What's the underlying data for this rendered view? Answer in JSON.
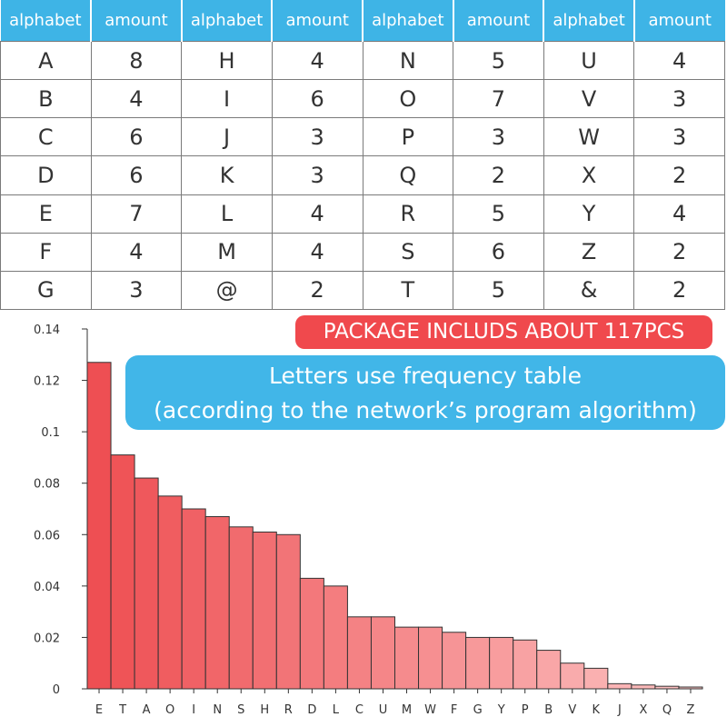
{
  "table": {
    "headers": [
      "alphabet",
      "amount",
      "alphabet",
      "amount",
      "alphabet",
      "amount",
      "alphabet",
      "amount"
    ],
    "rows": [
      [
        "A",
        "8",
        "H",
        "4",
        "N",
        "5",
        "U",
        "4"
      ],
      [
        "B",
        "4",
        "I",
        "6",
        "O",
        "7",
        "V",
        "3"
      ],
      [
        "C",
        "6",
        "J",
        "3",
        "P",
        "3",
        "W",
        "3"
      ],
      [
        "D",
        "6",
        "K",
        "3",
        "Q",
        "2",
        "X",
        "2"
      ],
      [
        "E",
        "7",
        "L",
        "4",
        "R",
        "5",
        "Y",
        "4"
      ],
      [
        "F",
        "4",
        "M",
        "4",
        "S",
        "6",
        "Z",
        "2"
      ],
      [
        "G",
        "3",
        "@",
        "2",
        "T",
        "5",
        "&",
        "2"
      ]
    ]
  },
  "banners": {
    "package": "PACKAGE INCLUDS ABOUT 117PCS",
    "title_line1": "Letters use frequency table",
    "title_line2": "(according to the network’s program algorithm)"
  },
  "chart_data": {
    "type": "bar",
    "categories": [
      "E",
      "T",
      "A",
      "O",
      "I",
      "N",
      "S",
      "H",
      "R",
      "D",
      "L",
      "C",
      "U",
      "M",
      "W",
      "F",
      "G",
      "Y",
      "P",
      "B",
      "V",
      "K",
      "J",
      "X",
      "Q",
      "Z"
    ],
    "values": [
      0.127,
      0.091,
      0.082,
      0.075,
      0.07,
      0.067,
      0.063,
      0.061,
      0.06,
      0.043,
      0.04,
      0.028,
      0.028,
      0.024,
      0.024,
      0.022,
      0.02,
      0.02,
      0.019,
      0.015,
      0.01,
      0.008,
      0.002,
      0.0015,
      0.001,
      0.0007
    ],
    "ylim": [
      0,
      0.14
    ],
    "yticks": [
      "0",
      "0.02",
      "0.04",
      "0.06",
      "0.08",
      "0.1",
      "0.12",
      "0.14"
    ],
    "ytick_values": [
      0,
      0.02,
      0.04,
      0.06,
      0.08,
      0.1,
      0.12,
      0.14
    ],
    "grid": false,
    "colors": {
      "high": "#ee4f53",
      "low": "#fcc2c2",
      "edge": "#333333",
      "header": "#3eb4e6",
      "banner_red": "#f0494d",
      "banner_blue": "#41b6e8"
    }
  }
}
